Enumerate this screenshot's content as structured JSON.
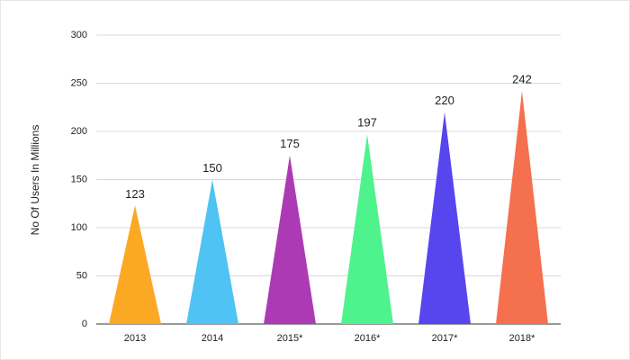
{
  "chart_data": {
    "type": "bar",
    "y_label": "No Of Users In Millions",
    "categories": [
      "2013",
      "2014",
      "2015*",
      "2016*",
      "2017*",
      "2018*"
    ],
    "values": [
      123,
      150,
      175,
      197,
      220,
      242
    ],
    "colors": [
      "#fba823",
      "#4fc3f3",
      "#ad3ab5",
      "#4ef38e",
      "#5746ee",
      "#f5704f"
    ],
    "ylim": [
      0,
      300
    ],
    "yticks": [
      0,
      50,
      100,
      150,
      200,
      250,
      300
    ],
    "grid": true
  }
}
